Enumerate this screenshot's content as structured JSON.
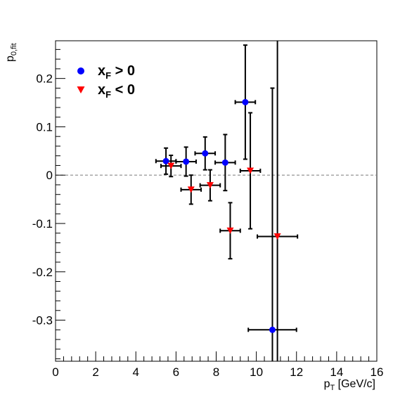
{
  "chart_data": {
    "type": "scatter",
    "xlabel": {
      "main": "p",
      "sub": "T",
      "rest": " [GeV/c]"
    },
    "ylabel": {
      "main": "p",
      "sub": "0,fit"
    },
    "xlim": [
      0,
      16
    ],
    "ylim": [
      -0.385,
      0.278
    ],
    "x_ticks": [
      0,
      2,
      4,
      6,
      8,
      10,
      12,
      14,
      16
    ],
    "x_tick_labels": [
      "0",
      "2",
      "4",
      "6",
      "8",
      "10",
      "12",
      "14",
      "16"
    ],
    "y_ticks": [
      -0.3,
      -0.2,
      -0.1,
      0,
      0.1,
      0.2
    ],
    "y_tick_labels": [
      "-0.3",
      "-0.2",
      "-0.1",
      "0",
      "0.1",
      "0.2"
    ],
    "reference_line": {
      "y": 0,
      "style": "dashed",
      "color": "#888888"
    },
    "grid": false,
    "legend_position": "top-left",
    "series": [
      {
        "legend_main": "x",
        "legend_sub": "F",
        "legend_rest": " > 0",
        "marker": "circle",
        "color": "#0000ff",
        "points": [
          {
            "x": 5.5,
            "y": 0.029,
            "xerr": 0.5,
            "yerr": 0.027
          },
          {
            "x": 6.5,
            "y": 0.028,
            "xerr": 0.5,
            "yerr": 0.03
          },
          {
            "x": 7.45,
            "y": 0.045,
            "xerr": 0.5,
            "yerr": 0.034
          },
          {
            "x": 8.45,
            "y": 0.026,
            "xerr": 0.5,
            "yerr": 0.058
          },
          {
            "x": 9.45,
            "y": 0.151,
            "xerr": 0.5,
            "yerr": 0.118
          },
          {
            "x": 10.8,
            "y": -0.32,
            "xerr": 1.2,
            "yerr": 0.5
          }
        ]
      },
      {
        "legend_main": "x",
        "legend_sub": "F",
        "legend_rest": " < 0",
        "marker": "triangle-down",
        "color": "#ff0000",
        "points": [
          {
            "x": 5.75,
            "y": 0.019,
            "xerr": 0.5,
            "yerr": 0.022
          },
          {
            "x": 6.75,
            "y": -0.03,
            "xerr": 0.5,
            "yerr": 0.03
          },
          {
            "x": 7.7,
            "y": -0.021,
            "xerr": 0.5,
            "yerr": 0.032
          },
          {
            "x": 8.7,
            "y": -0.115,
            "xerr": 0.5,
            "yerr": 0.058
          },
          {
            "x": 9.7,
            "y": 0.009,
            "xerr": 0.5,
            "yerr": 0.12
          },
          {
            "x": 11.05,
            "y": -0.127,
            "xerr": 1.0,
            "yerr": 0.5
          }
        ]
      }
    ]
  }
}
